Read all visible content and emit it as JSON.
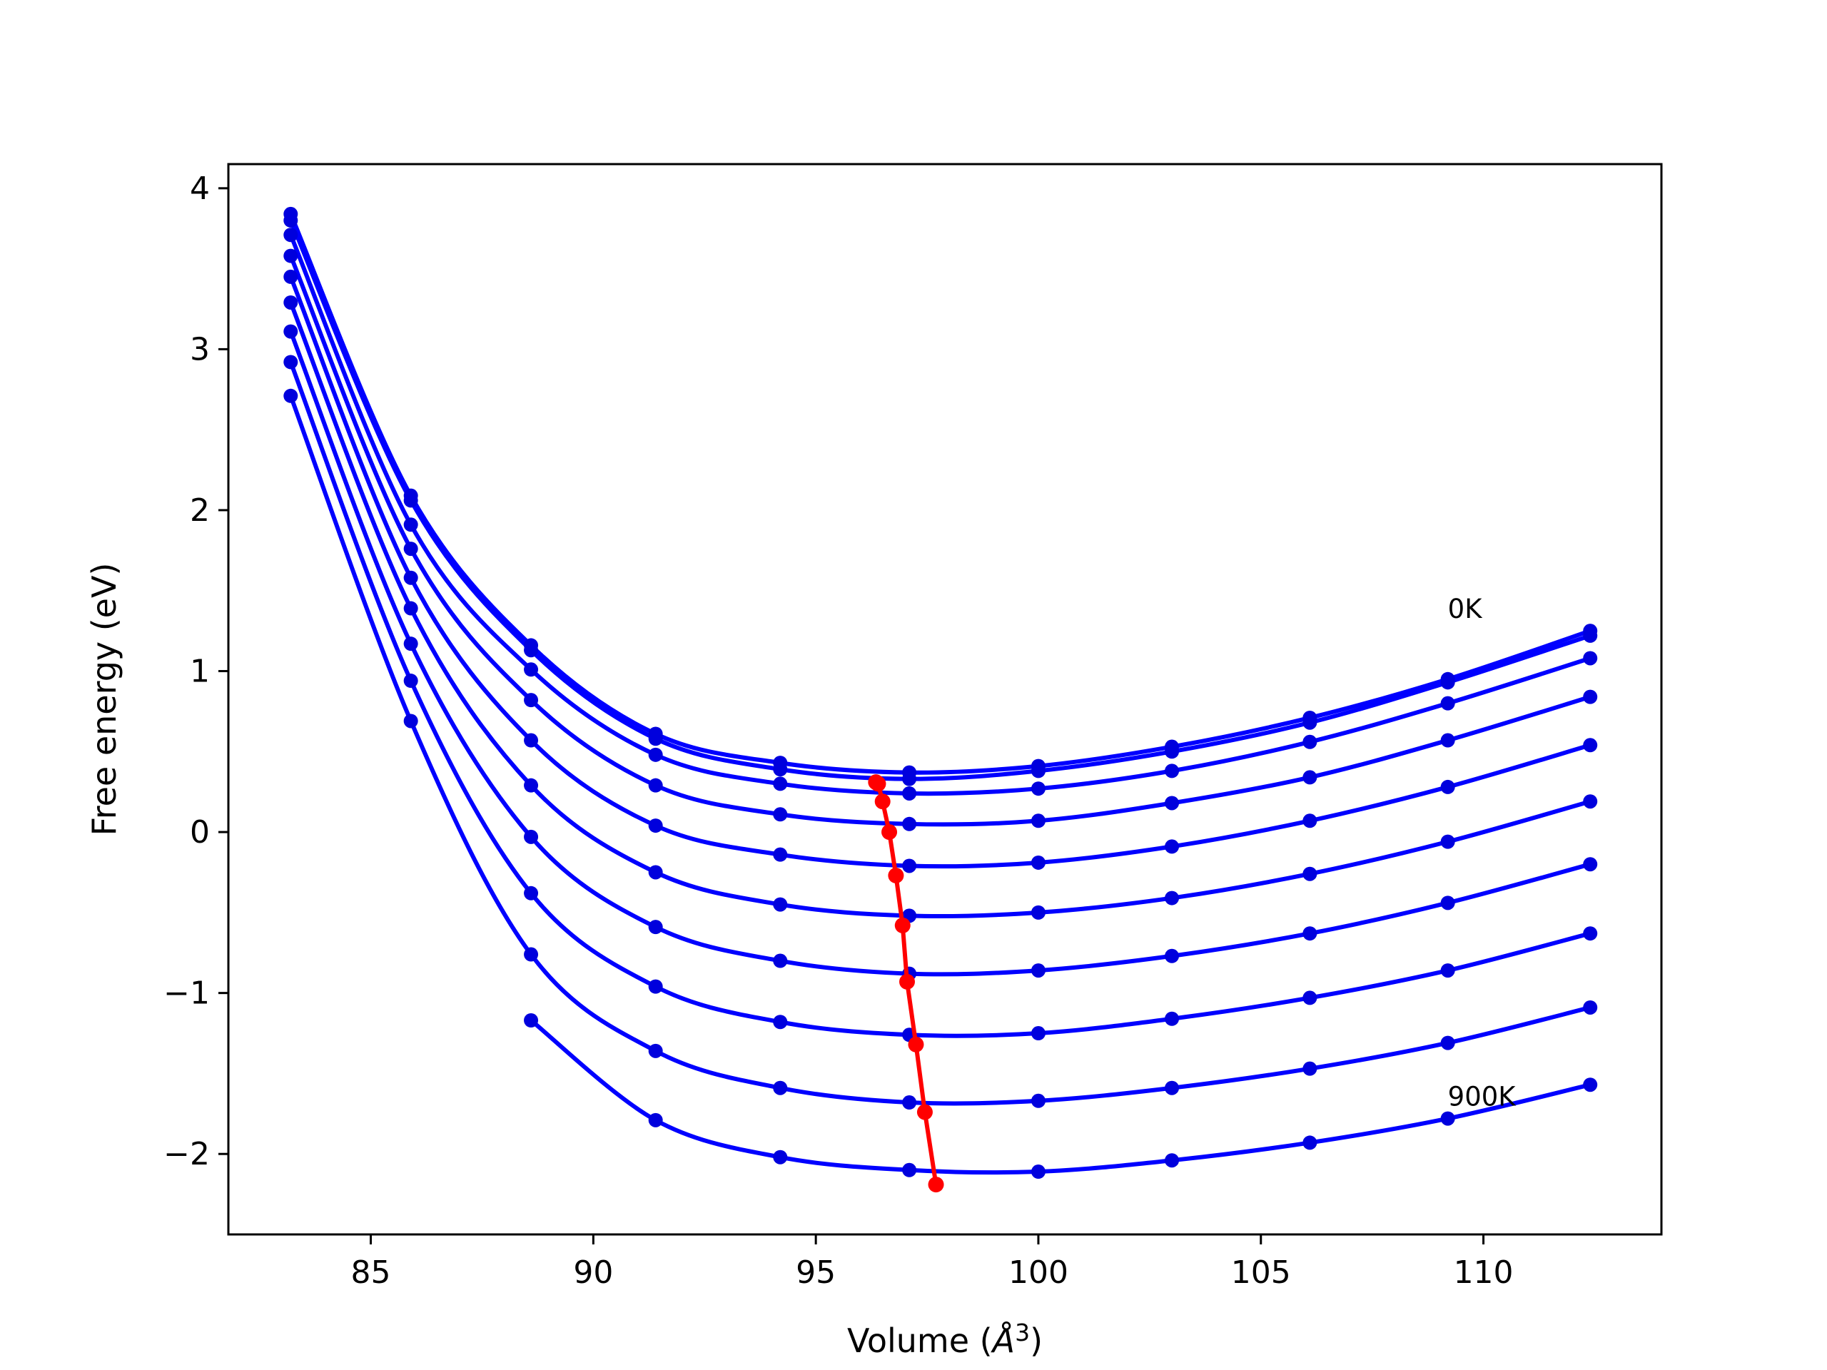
{
  "chart_data": {
    "type": "scatter",
    "xlabel": "Volume (",
    "xlabel_unit": "Å",
    "xlabel_exp": "3",
    "xlabel_close": ")",
    "ylabel": "Free energy (eV)",
    "xlim": [
      81.8,
      114.0
    ],
    "ylim": [
      -2.5,
      4.15
    ],
    "xticks": [
      85,
      90,
      95,
      100,
      105,
      110
    ],
    "xtick_labels": [
      "85",
      "90",
      "95",
      "100",
      "105",
      "110"
    ],
    "yticks": [
      -2,
      -1,
      0,
      1,
      2,
      3,
      4
    ],
    "ytick_labels": [
      "−2",
      "−1",
      "0",
      "1",
      "2",
      "3",
      "4"
    ],
    "colors": {
      "fit": "#0000ff",
      "points": "#0000dd",
      "minima": "#ff0000"
    },
    "annotations": [
      {
        "text": "0K",
        "x": 109.2,
        "y": 1.33
      },
      {
        "text": "900K",
        "x": 109.2,
        "y": -1.7
      }
    ],
    "volumes": [
      83.2,
      85.9,
      88.6,
      91.4,
      94.2,
      97.1,
      100.0,
      103.0,
      106.1,
      109.2,
      112.4
    ],
    "series": [
      {
        "values": [
          3.84,
          2.09,
          1.16,
          0.61,
          0.43,
          0.37,
          0.41,
          0.53,
          0.71,
          0.95,
          1.25
        ]
      },
      {
        "values": [
          3.8,
          2.06,
          1.13,
          0.58,
          0.39,
          0.33,
          0.38,
          0.5,
          0.68,
          0.93,
          1.22
        ]
      },
      {
        "values": [
          3.71,
          1.91,
          1.01,
          0.48,
          0.3,
          0.24,
          0.27,
          0.38,
          0.56,
          0.8,
          1.08
        ]
      },
      {
        "values": [
          3.58,
          1.76,
          0.82,
          0.29,
          0.11,
          0.05,
          0.07,
          0.18,
          0.34,
          0.57,
          0.84
        ]
      },
      {
        "values": [
          3.45,
          1.58,
          0.57,
          0.04,
          -0.14,
          -0.21,
          -0.19,
          -0.09,
          0.07,
          0.28,
          0.54
        ]
      },
      {
        "values": [
          3.29,
          1.39,
          0.29,
          -0.25,
          -0.45,
          -0.52,
          -0.5,
          -0.41,
          -0.26,
          -0.06,
          0.19
        ]
      },
      {
        "values": [
          3.11,
          1.17,
          -0.03,
          -0.59,
          -0.8,
          -0.88,
          -0.86,
          -0.77,
          -0.63,
          -0.44,
          -0.2
        ]
      },
      {
        "values": [
          2.92,
          0.94,
          -0.38,
          -0.96,
          -1.18,
          -1.26,
          -1.25,
          -1.16,
          -1.03,
          -0.86,
          -0.63
        ]
      },
      {
        "values": [
          2.71,
          0.69,
          -0.76,
          -1.36,
          -1.59,
          -1.68,
          -1.67,
          -1.59,
          -1.47,
          -1.31,
          -1.09
        ]
      },
      {
        "values": [
          null,
          null,
          -1.17,
          -1.79,
          -2.02,
          -2.1,
          -2.11,
          -2.04,
          -1.93,
          -1.78,
          -1.57
        ]
      }
    ],
    "minima": {
      "x": [
        96.35,
        96.4,
        96.5,
        96.65,
        96.8,
        96.95,
        97.05,
        97.25,
        97.45,
        97.7
      ],
      "y": [
        0.31,
        0.3,
        0.19,
        0.0,
        -0.27,
        -0.58,
        -0.93,
        -1.32,
        -1.74,
        -2.19
      ]
    }
  }
}
